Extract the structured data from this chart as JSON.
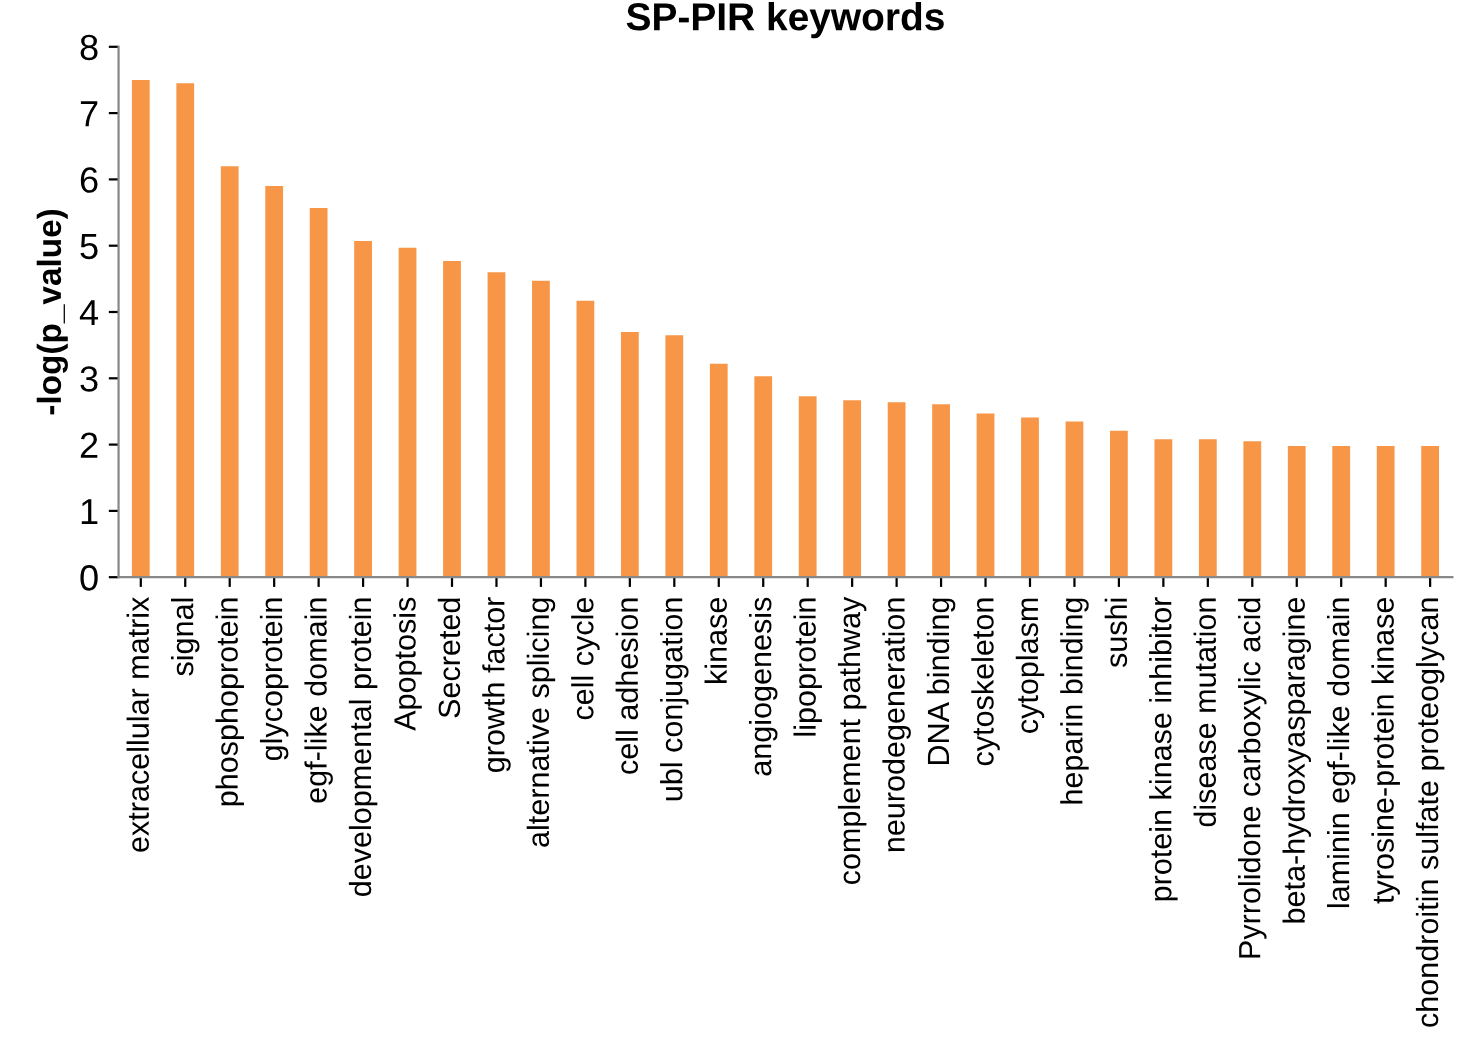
{
  "chart_data": {
    "type": "bar",
    "title": "SP-PIR keywords",
    "ylabel": "-log(p_value)",
    "categories": [
      "extracellular matrix",
      "signal",
      "phosphoprotein",
      "glycoprotein",
      "egf-like domain",
      "developmental protein",
      "Apoptosis",
      "Secreted",
      "growth factor",
      "alternative splicing",
      "cell cycle",
      "cell adhesion",
      "ubl conjugation",
      "kinase",
      "angiogenesis",
      "lipoprotein",
      "complement pathway",
      "neurodegeneration",
      "DNA binding",
      "cytoskeleton",
      "cytoplasm",
      "heparin binding",
      "sushi",
      "protein kinase inhibitor",
      "disease mutation",
      "Pyrrolidone carboxylic acid",
      "beta-hydroxyasparagine",
      "laminin egf-like domain",
      "tyrosine-protein kinase",
      "chondroitin sulfate proteoglycan"
    ],
    "values": [
      7.5,
      7.45,
      6.2,
      5.9,
      5.57,
      5.07,
      4.97,
      4.77,
      4.6,
      4.47,
      4.17,
      3.7,
      3.65,
      3.22,
      3.03,
      2.73,
      2.67,
      2.64,
      2.61,
      2.47,
      2.41,
      2.35,
      2.21,
      2.08,
      2.08,
      2.05,
      1.98,
      1.98,
      1.98,
      1.98
    ],
    "color": "#f79646",
    "ylim": [
      0,
      8
    ],
    "yticks": [
      0,
      1,
      2,
      3,
      4,
      5,
      6,
      7,
      8
    ],
    "grid": false,
    "legend": false
  }
}
